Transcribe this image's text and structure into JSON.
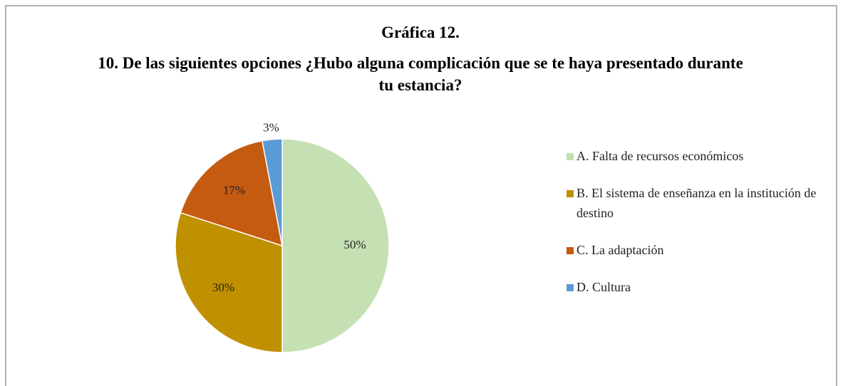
{
  "chart_data": {
    "type": "pie",
    "title": "Gráfica 12.",
    "subtitle": "10. De las siguientes opciones ¿Hubo alguna complicación que se te haya presentado durante tu estancia?",
    "categories": [
      "A. Falta de recursos económicos",
      "B. El sistema de enseñanza en la institución de destino",
      "C. La adaptación",
      "D. Cultura"
    ],
    "values": [
      50,
      30,
      17,
      3
    ],
    "value_labels": [
      "50%",
      "30%",
      "17%",
      "3%"
    ],
    "colors": [
      "#c5e0b3",
      "#bf9000",
      "#c55a11",
      "#5b9bd5"
    ],
    "legend": "right"
  }
}
